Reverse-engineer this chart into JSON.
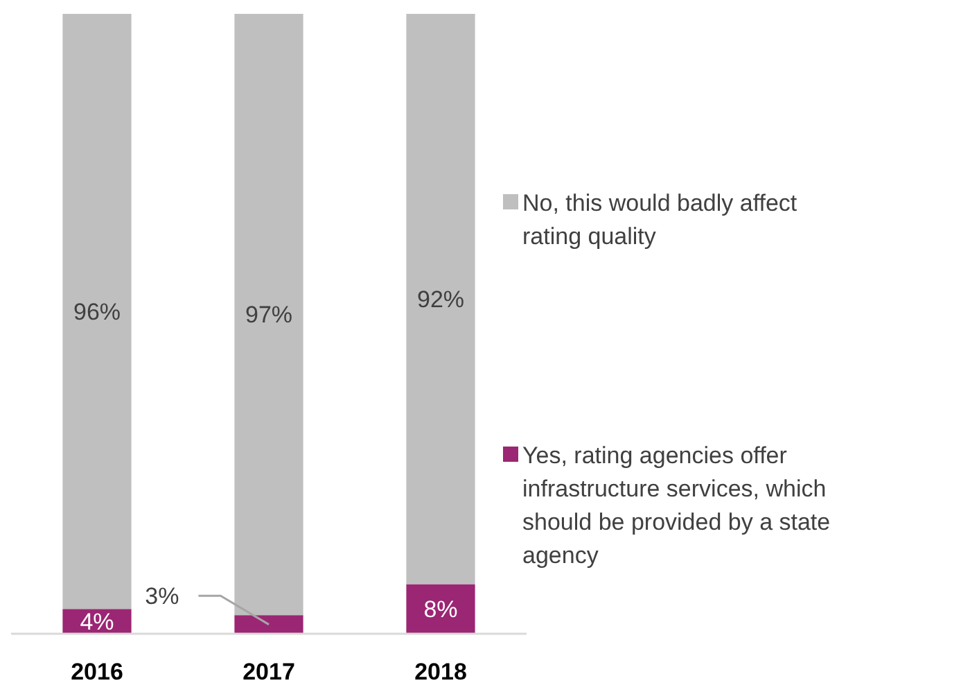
{
  "chart_data": {
    "type": "bar",
    "stacked": true,
    "categories": [
      "2016",
      "2017",
      "2018"
    ],
    "ylim": [
      0,
      100
    ],
    "legend": "right",
    "series": [
      {
        "name": "Yes, rating agencies offer infrastructure services, which should be provided by a state agency",
        "color": "#9b2673",
        "values": [
          4,
          3,
          8
        ],
        "value_labels": [
          "4%",
          "3%",
          "8%"
        ]
      },
      {
        "name": "No, this would badly affect rating quality",
        "color": "#bfbfbf",
        "values": [
          96,
          97,
          92
        ],
        "value_labels": [
          "96%",
          "97%",
          "92%"
        ]
      }
    ]
  }
}
